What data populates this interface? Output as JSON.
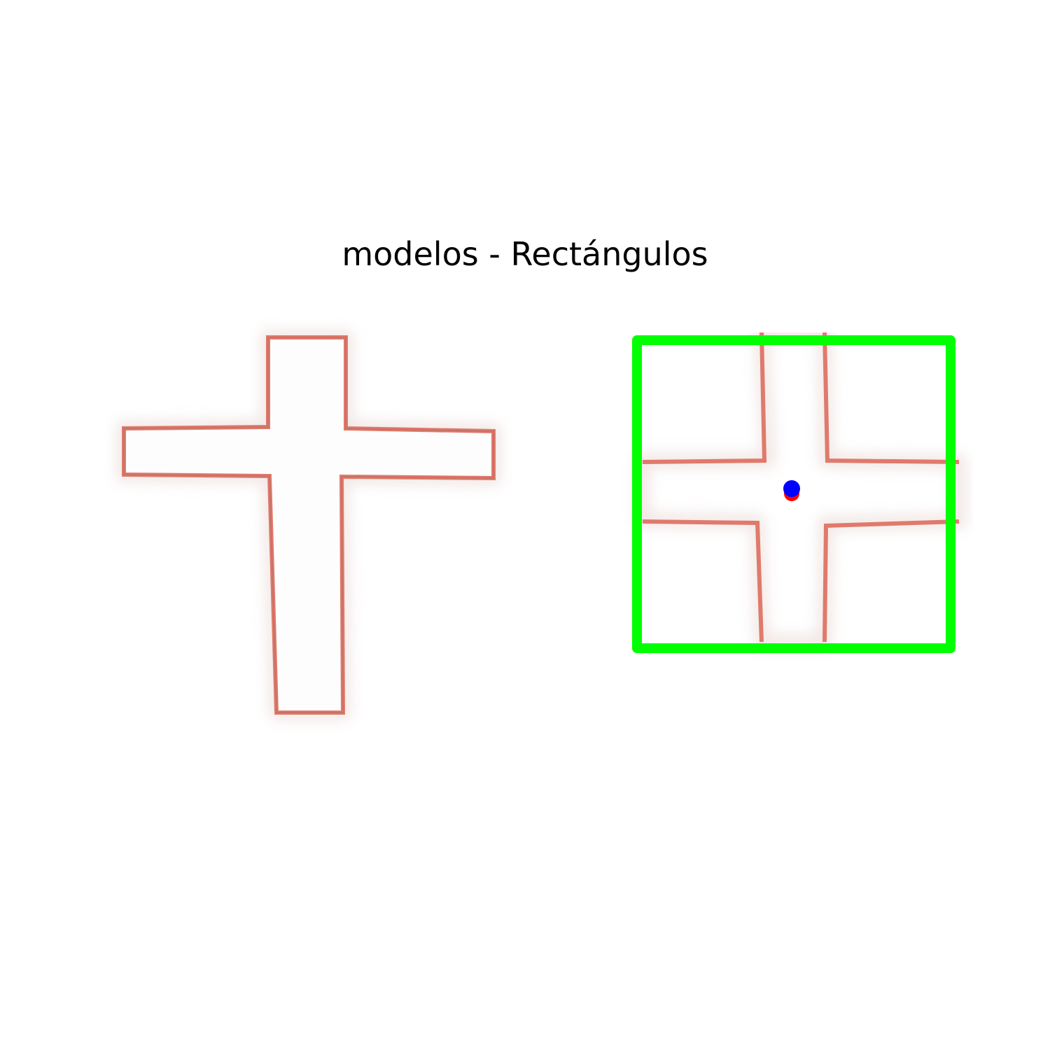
{
  "figure": {
    "title": "modelos - Rectángulos"
  },
  "colors": {
    "shape_outline": "#e07a6c",
    "shape_outline_dark": "#b86a60",
    "shape_fill": "#fdfdfd",
    "bounding_box": "#00ff00",
    "center_marker_red": "#ff0000",
    "center_marker_blue": "#0000ff"
  },
  "panels": [
    {
      "name": "original-cross-panel",
      "shape": "cross"
    },
    {
      "name": "detected-rectangle-panel",
      "shape": "cropped-cross-with-bounding-box"
    }
  ]
}
